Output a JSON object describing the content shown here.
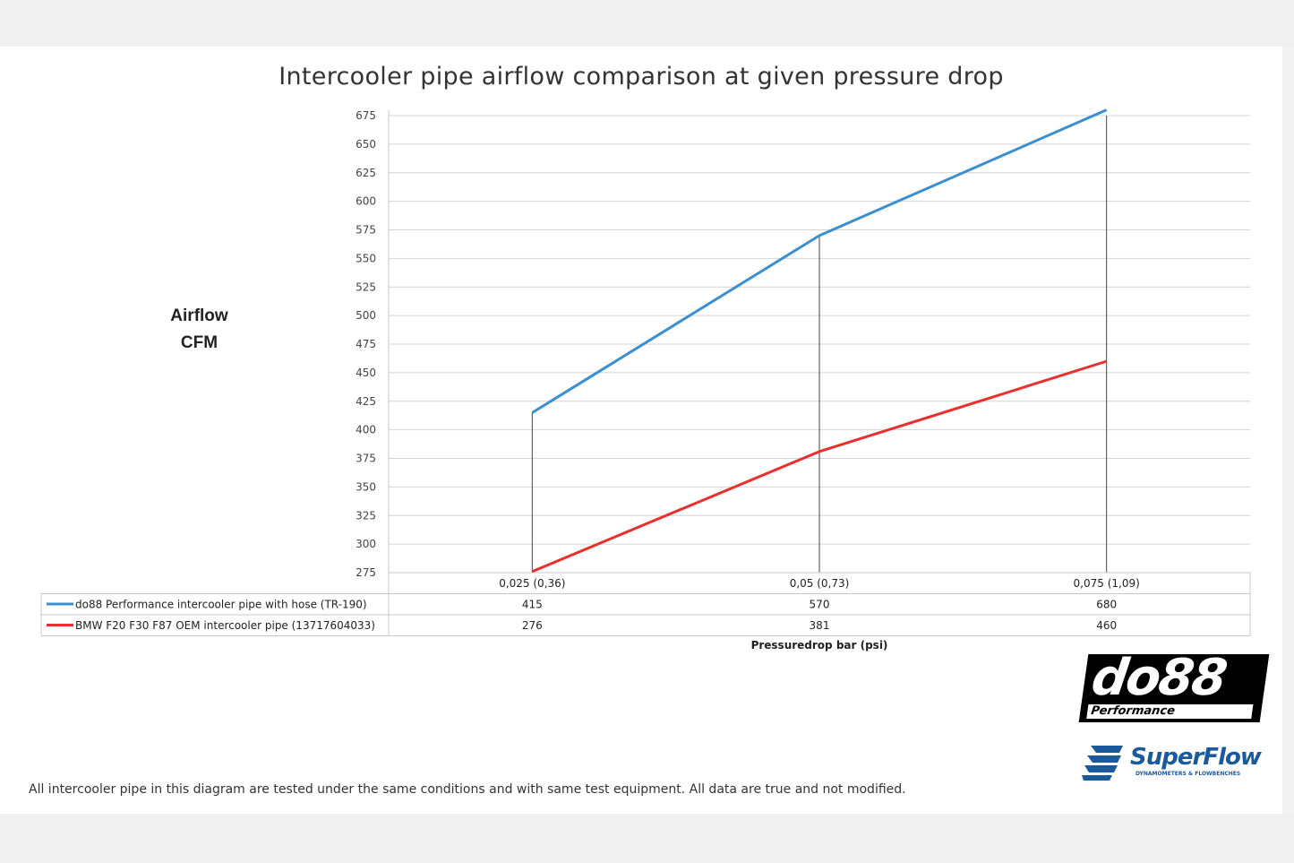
{
  "chart_data": {
    "type": "line",
    "title": "Intercooler pipe airflow comparison at given pressure drop",
    "ylabel": [
      "Airflow",
      "CFM"
    ],
    "xlabel": "Pressuredrop bar (psi)",
    "categories": [
      "0,025 (0,36)",
      "0,05 (0,73)",
      "0,075 (1,09)"
    ],
    "ylim": [
      275,
      675
    ],
    "ytick_step": 25,
    "grid": true,
    "series": [
      {
        "name": "do88 Performance intercooler pipe with hose (TR-190)",
        "color": "#3a8fd0",
        "values": [
          415,
          570,
          680
        ]
      },
      {
        "name": "BMW F20 F30 F87 OEM intercooler pipe (13717604033)",
        "color": "#e8302e",
        "values": [
          276,
          381,
          460
        ]
      }
    ]
  },
  "footnote": "All intercooler pipe in this diagram are tested under the same conditions and with same test equipment. All data are true and not modified.",
  "logos": {
    "do88": {
      "text": "do88",
      "sub": "Performance"
    },
    "superflow": {
      "text": "SuperFlow",
      "tagline": "DYNAMOMETERS & FLOWBENCHES"
    }
  }
}
